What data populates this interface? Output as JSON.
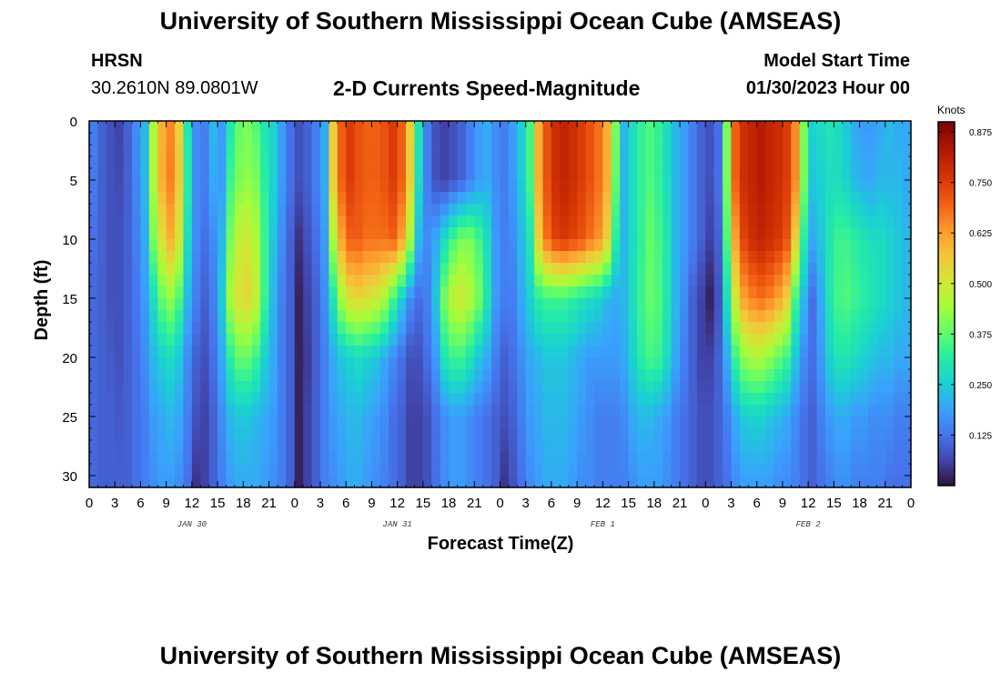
{
  "header": {
    "title": "University of Southern Mississippi Ocean Cube (AMSEAS)",
    "station": "HRSN",
    "coords": "30.2610N  89.0801W",
    "subtitle": "2-D Currents Speed-Magnitude",
    "model_start_label": "Model Start Time",
    "model_start_value": "01/30/2023 Hour 00"
  },
  "footer": {
    "title": "University of Southern Mississippi Ocean Cube (AMSEAS)"
  },
  "chart_data": {
    "type": "heatmap",
    "title": "2-D Currents Speed-Magnitude",
    "xlabel": "Forecast Time(Z)",
    "ylabel": "Depth (ft)",
    "xlim": [
      0,
      96
    ],
    "ylim": [
      0,
      31
    ],
    "y_inverted": true,
    "x_tick_values": [
      0,
      3,
      6,
      9,
      12,
      15,
      18,
      21,
      24,
      27,
      30,
      33,
      36,
      39,
      42,
      45,
      48,
      51,
      54,
      57,
      60,
      63,
      66,
      69,
      72,
      75,
      78,
      81,
      84,
      87,
      90,
      93,
      96
    ],
    "x_tick_labels": [
      "0",
      "3",
      "6",
      "9",
      "12",
      "15",
      "18",
      "21",
      "0",
      "3",
      "6",
      "9",
      "12",
      "15",
      "18",
      "21",
      "0",
      "3",
      "6",
      "9",
      "12",
      "15",
      "18",
      "21",
      "0",
      "3",
      "6",
      "9",
      "12",
      "15",
      "18",
      "21",
      "0"
    ],
    "y_ticks": [
      0,
      5,
      10,
      15,
      20,
      25,
      30
    ],
    "day_labels": [
      {
        "x": 12,
        "label": "JAN 30"
      },
      {
        "x": 36,
        "label": "JAN 31"
      },
      {
        "x": 60,
        "label": "FEB 1"
      },
      {
        "x": 84,
        "label": "FEB 2"
      }
    ],
    "colorbar": {
      "title": "Knots",
      "min": 0,
      "max": 0.9,
      "ticks": [
        "0.125",
        "0.250",
        "0.375",
        "0.500",
        "0.625",
        "0.750",
        "0.875"
      ],
      "tick_values": [
        0.125,
        0.25,
        0.375,
        0.5,
        0.625,
        0.75,
        0.875
      ]
    },
    "depths": [
      0,
      5,
      10,
      15,
      20,
      25,
      31
    ],
    "times": [
      0,
      1,
      2,
      3,
      4,
      5,
      6,
      7,
      8,
      9,
      10,
      11,
      12,
      13,
      14,
      15,
      16,
      17,
      18,
      19,
      20,
      21,
      22,
      23,
      24,
      25,
      26,
      27,
      28,
      29,
      30,
      31,
      32,
      33,
      34,
      35,
      36,
      37,
      38,
      39,
      40,
      41,
      42,
      43,
      44,
      45,
      46,
      47,
      48,
      49,
      50,
      51,
      52,
      53,
      54,
      55,
      56,
      57,
      58,
      59,
      60,
      61,
      62,
      63,
      64,
      65,
      66,
      67,
      68,
      69,
      70,
      71,
      72,
      73,
      74,
      75,
      76,
      77,
      78,
      79,
      80,
      81,
      82,
      83,
      84,
      85,
      86,
      87,
      88,
      89,
      90,
      91,
      92,
      93,
      94,
      95,
      96
    ],
    "speed_knots": [
      [
        0.14,
        0.1,
        0.08,
        0.06,
        0.1,
        0.16,
        0.22,
        0.45,
        0.6,
        0.65,
        0.55,
        0.3,
        0.16,
        0.14,
        0.22,
        0.18,
        0.3,
        0.38,
        0.4,
        0.36,
        0.3,
        0.26,
        0.18,
        0.12,
        0.08,
        0.1,
        0.14,
        0.2,
        0.55,
        0.7,
        0.75,
        0.72,
        0.7,
        0.7,
        0.72,
        0.75,
        0.7,
        0.55,
        0.3,
        0.14,
        0.08,
        0.06,
        0.08,
        0.1,
        0.14,
        0.18,
        0.2,
        0.16,
        0.14,
        0.18,
        0.25,
        0.35,
        0.6,
        0.72,
        0.78,
        0.8,
        0.78,
        0.75,
        0.72,
        0.68,
        0.6,
        0.4,
        0.22,
        0.28,
        0.33,
        0.36,
        0.33,
        0.28,
        0.22,
        0.18,
        0.14,
        0.1,
        0.08,
        0.12,
        0.4,
        0.7,
        0.78,
        0.8,
        0.82,
        0.8,
        0.78,
        0.75,
        0.65,
        0.4,
        0.26,
        0.28,
        0.3,
        0.28,
        0.24,
        0.2,
        0.18,
        0.18,
        0.2,
        0.22,
        0.2,
        0.2,
        0.18
      ],
      [
        0.13,
        0.1,
        0.08,
        0.07,
        0.1,
        0.15,
        0.22,
        0.45,
        0.6,
        0.66,
        0.56,
        0.32,
        0.16,
        0.14,
        0.2,
        0.18,
        0.34,
        0.4,
        0.42,
        0.4,
        0.32,
        0.26,
        0.18,
        0.12,
        0.08,
        0.1,
        0.14,
        0.2,
        0.55,
        0.7,
        0.75,
        0.72,
        0.7,
        0.7,
        0.72,
        0.75,
        0.7,
        0.55,
        0.28,
        0.14,
        0.08,
        0.06,
        0.08,
        0.1,
        0.14,
        0.18,
        0.2,
        0.16,
        0.14,
        0.18,
        0.25,
        0.35,
        0.6,
        0.72,
        0.78,
        0.8,
        0.78,
        0.75,
        0.72,
        0.68,
        0.6,
        0.38,
        0.22,
        0.28,
        0.33,
        0.36,
        0.33,
        0.28,
        0.22,
        0.18,
        0.14,
        0.1,
        0.08,
        0.12,
        0.4,
        0.7,
        0.78,
        0.8,
        0.82,
        0.8,
        0.78,
        0.75,
        0.65,
        0.4,
        0.24,
        0.26,
        0.28,
        0.28,
        0.26,
        0.22,
        0.2,
        0.2,
        0.22,
        0.22,
        0.22,
        0.2,
        0.18
      ],
      [
        0.12,
        0.1,
        0.08,
        0.08,
        0.1,
        0.14,
        0.2,
        0.4,
        0.52,
        0.6,
        0.5,
        0.28,
        0.16,
        0.12,
        0.16,
        0.22,
        0.4,
        0.48,
        0.5,
        0.45,
        0.34,
        0.24,
        0.16,
        0.1,
        0.04,
        0.08,
        0.12,
        0.18,
        0.45,
        0.62,
        0.7,
        0.7,
        0.68,
        0.68,
        0.68,
        0.7,
        0.62,
        0.45,
        0.22,
        0.16,
        0.2,
        0.28,
        0.35,
        0.4,
        0.4,
        0.35,
        0.28,
        0.18,
        0.14,
        0.16,
        0.22,
        0.3,
        0.55,
        0.68,
        0.74,
        0.76,
        0.74,
        0.72,
        0.68,
        0.64,
        0.55,
        0.32,
        0.22,
        0.28,
        0.33,
        0.38,
        0.35,
        0.3,
        0.22,
        0.18,
        0.14,
        0.1,
        0.06,
        0.1,
        0.36,
        0.62,
        0.74,
        0.78,
        0.8,
        0.78,
        0.76,
        0.72,
        0.55,
        0.32,
        0.2,
        0.24,
        0.3,
        0.34,
        0.34,
        0.32,
        0.3,
        0.28,
        0.28,
        0.26,
        0.24,
        0.22,
        0.2
      ],
      [
        0.11,
        0.1,
        0.08,
        0.08,
        0.1,
        0.13,
        0.18,
        0.28,
        0.38,
        0.42,
        0.36,
        0.22,
        0.14,
        0.1,
        0.14,
        0.25,
        0.45,
        0.52,
        0.54,
        0.48,
        0.34,
        0.22,
        0.14,
        0.1,
        0.02,
        0.06,
        0.1,
        0.16,
        0.3,
        0.45,
        0.52,
        0.54,
        0.52,
        0.5,
        0.45,
        0.35,
        0.25,
        0.16,
        0.12,
        0.14,
        0.24,
        0.4,
        0.48,
        0.5,
        0.46,
        0.4,
        0.3,
        0.18,
        0.14,
        0.14,
        0.2,
        0.26,
        0.32,
        0.34,
        0.34,
        0.34,
        0.32,
        0.3,
        0.28,
        0.26,
        0.22,
        0.2,
        0.22,
        0.28,
        0.34,
        0.38,
        0.36,
        0.3,
        0.22,
        0.16,
        0.1,
        0.06,
        0.02,
        0.08,
        0.28,
        0.5,
        0.62,
        0.66,
        0.68,
        0.66,
        0.62,
        0.55,
        0.35,
        0.22,
        0.12,
        0.2,
        0.3,
        0.35,
        0.36,
        0.34,
        0.32,
        0.3,
        0.28,
        0.26,
        0.24,
        0.22,
        0.2
      ],
      [
        0.11,
        0.1,
        0.09,
        0.08,
        0.1,
        0.12,
        0.16,
        0.22,
        0.26,
        0.28,
        0.24,
        0.16,
        0.1,
        0.08,
        0.12,
        0.2,
        0.32,
        0.38,
        0.38,
        0.34,
        0.26,
        0.2,
        0.14,
        0.1,
        0.02,
        0.05,
        0.1,
        0.14,
        0.2,
        0.24,
        0.26,
        0.28,
        0.26,
        0.24,
        0.2,
        0.16,
        0.12,
        0.08,
        0.08,
        0.12,
        0.18,
        0.3,
        0.34,
        0.34,
        0.3,
        0.24,
        0.2,
        0.14,
        0.1,
        0.12,
        0.16,
        0.2,
        0.22,
        0.24,
        0.24,
        0.24,
        0.22,
        0.2,
        0.18,
        0.18,
        0.18,
        0.18,
        0.2,
        0.26,
        0.32,
        0.35,
        0.34,
        0.28,
        0.2,
        0.14,
        0.1,
        0.06,
        0.06,
        0.1,
        0.2,
        0.34,
        0.42,
        0.45,
        0.45,
        0.42,
        0.38,
        0.34,
        0.24,
        0.16,
        0.12,
        0.18,
        0.26,
        0.3,
        0.3,
        0.28,
        0.26,
        0.24,
        0.22,
        0.22,
        0.2,
        0.2,
        0.18
      ],
      [
        0.11,
        0.1,
        0.1,
        0.09,
        0.1,
        0.12,
        0.14,
        0.18,
        0.2,
        0.22,
        0.2,
        0.14,
        0.08,
        0.06,
        0.1,
        0.16,
        0.22,
        0.24,
        0.24,
        0.22,
        0.2,
        0.18,
        0.14,
        0.1,
        0.02,
        0.06,
        0.1,
        0.14,
        0.18,
        0.2,
        0.22,
        0.22,
        0.2,
        0.18,
        0.16,
        0.12,
        0.1,
        0.06,
        0.06,
        0.08,
        0.12,
        0.16,
        0.18,
        0.18,
        0.16,
        0.14,
        0.12,
        0.1,
        0.08,
        0.1,
        0.14,
        0.18,
        0.2,
        0.22,
        0.22,
        0.22,
        0.2,
        0.18,
        0.16,
        0.14,
        0.14,
        0.14,
        0.16,
        0.2,
        0.22,
        0.22,
        0.2,
        0.18,
        0.14,
        0.12,
        0.1,
        0.08,
        0.08,
        0.1,
        0.14,
        0.2,
        0.25,
        0.26,
        0.26,
        0.24,
        0.22,
        0.2,
        0.16,
        0.12,
        0.1,
        0.14,
        0.18,
        0.2,
        0.2,
        0.18,
        0.18,
        0.16,
        0.16,
        0.16,
        0.14,
        0.14,
        0.14
      ],
      [
        0.11,
        0.1,
        0.1,
        0.1,
        0.1,
        0.12,
        0.14,
        0.16,
        0.18,
        0.18,
        0.16,
        0.12,
        0.04,
        0.06,
        0.1,
        0.14,
        0.18,
        0.2,
        0.2,
        0.2,
        0.18,
        0.16,
        0.14,
        0.1,
        0.02,
        0.06,
        0.1,
        0.14,
        0.16,
        0.18,
        0.2,
        0.2,
        0.18,
        0.16,
        0.14,
        0.12,
        0.1,
        0.06,
        0.06,
        0.08,
        0.12,
        0.16,
        0.18,
        0.18,
        0.16,
        0.14,
        0.12,
        0.1,
        0.04,
        0.08,
        0.12,
        0.16,
        0.18,
        0.2,
        0.2,
        0.2,
        0.18,
        0.16,
        0.16,
        0.14,
        0.14,
        0.14,
        0.14,
        0.16,
        0.18,
        0.18,
        0.18,
        0.16,
        0.14,
        0.12,
        0.1,
        0.08,
        0.08,
        0.1,
        0.12,
        0.16,
        0.18,
        0.18,
        0.18,
        0.18,
        0.16,
        0.16,
        0.14,
        0.12,
        0.1,
        0.12,
        0.14,
        0.16,
        0.16,
        0.14,
        0.14,
        0.14,
        0.14,
        0.12,
        0.12,
        0.12,
        0.12
      ]
    ]
  }
}
